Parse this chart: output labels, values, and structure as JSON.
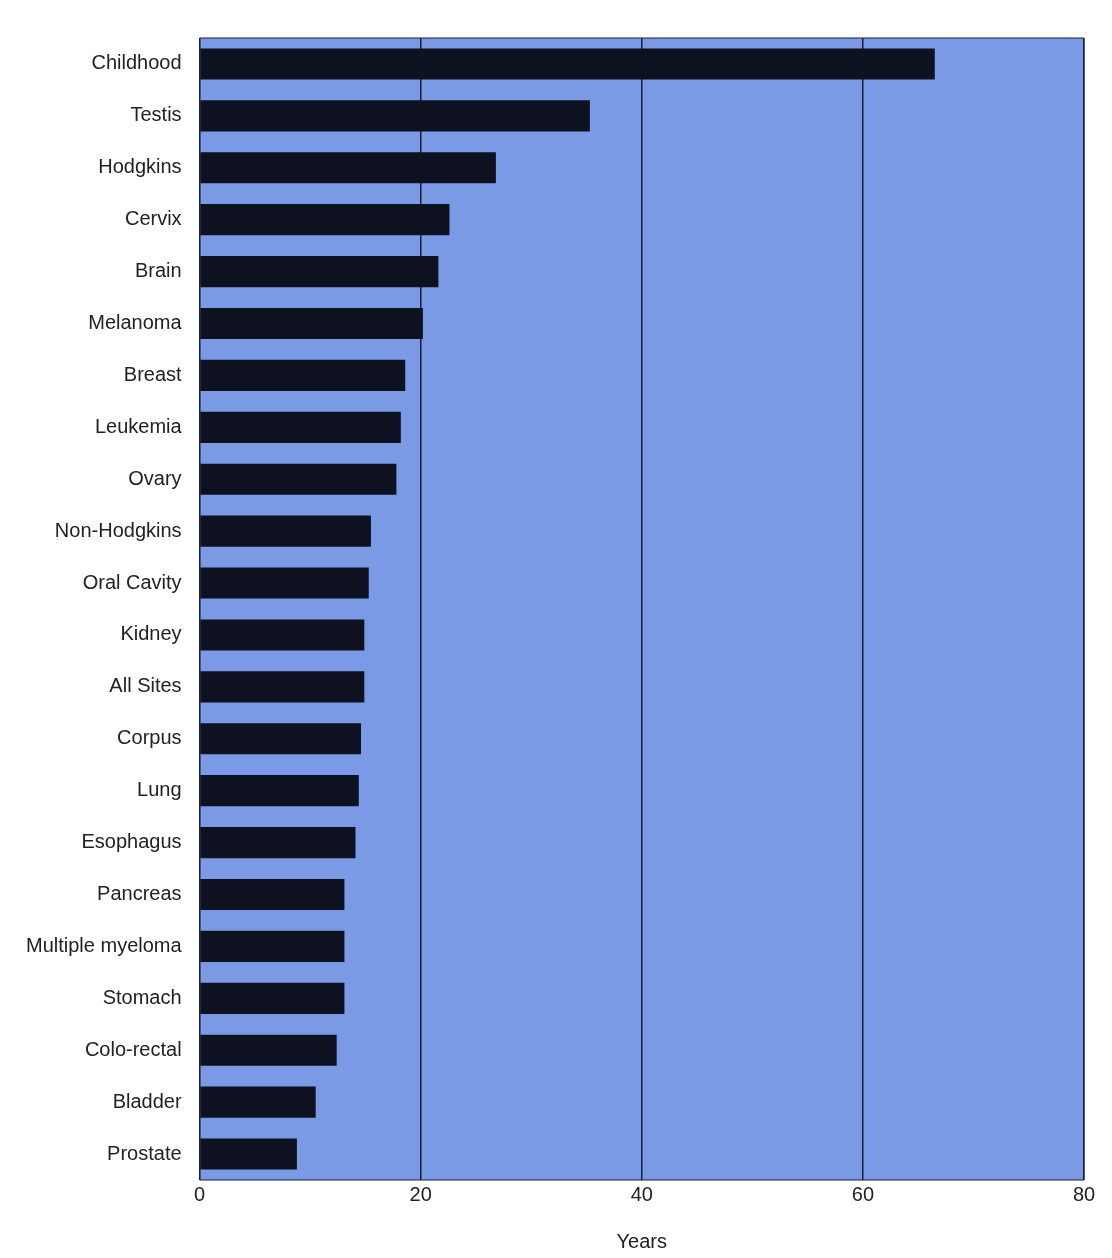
{
  "chart_data": {
    "type": "bar",
    "orientation": "horizontal",
    "xlabel": "Years",
    "categories": [
      "Childhood",
      "Testis",
      "Hodgkins",
      "Cervix",
      "Brain",
      "Melanoma",
      "Breast",
      "Leukemia",
      "Ovary",
      "Non-Hodgkins",
      "Oral Cavity",
      "Kidney",
      "All Sites",
      "Corpus",
      "Lung",
      "Esophagus",
      "Pancreas",
      "Multiple myeloma",
      "Stomach",
      "Colo-rectal",
      "Bladder",
      "Prostate"
    ],
    "values": [
      66.5,
      35.3,
      26.8,
      22.6,
      21.6,
      20.2,
      18.6,
      18.2,
      17.8,
      15.5,
      15.3,
      14.9,
      14.9,
      14.6,
      14.4,
      14.1,
      13.1,
      13.1,
      13.1,
      12.4,
      10.5,
      8.8
    ],
    "color": "#0d1120",
    "xlim": [
      0,
      80
    ],
    "xticks": [
      0,
      20,
      40,
      60,
      80
    ],
    "grid": "x",
    "legend": false
  }
}
